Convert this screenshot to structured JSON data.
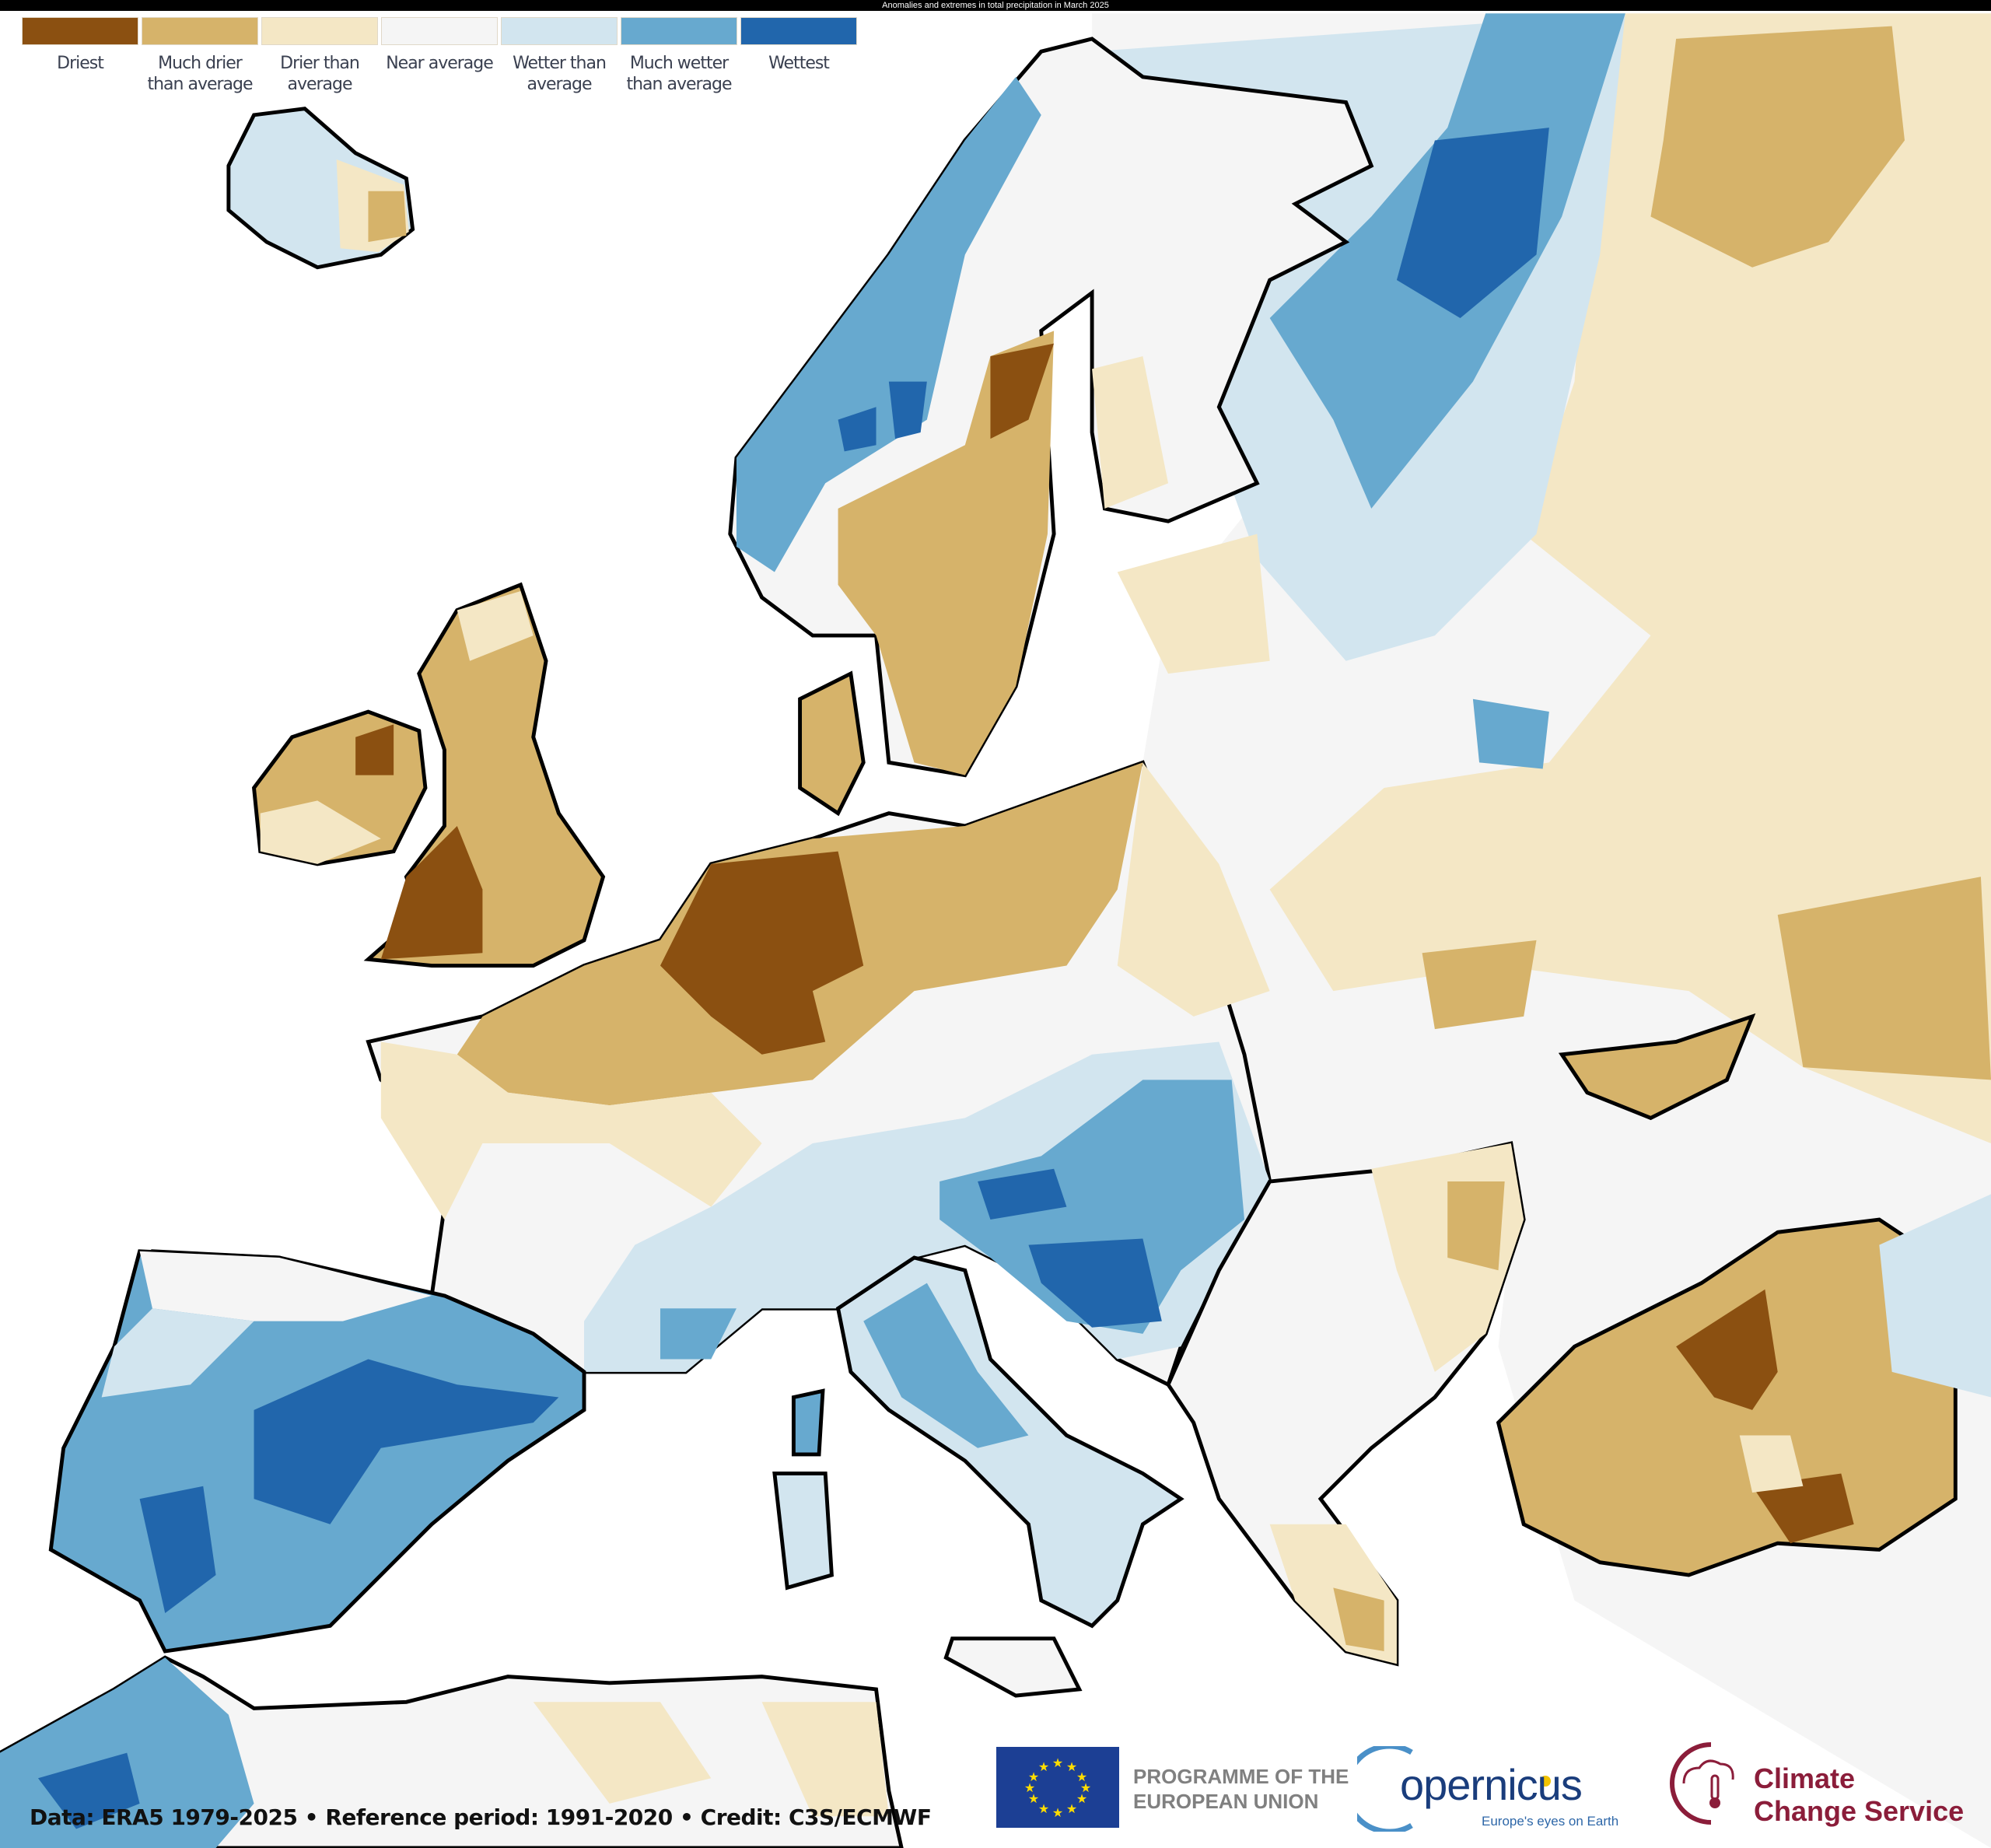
{
  "title": "Anomalies and extremes in total precipitation in March 2025",
  "legend": [
    {
      "label": "Driest",
      "color": "#8b5011"
    },
    {
      "label": "Much drier than average",
      "color": "#d6b36a"
    },
    {
      "label": "Drier than average",
      "color": "#f4e7c5"
    },
    {
      "label": "Near average",
      "color": "#f5f5f5"
    },
    {
      "label": "Wetter than average",
      "color": "#d2e5ef"
    },
    {
      "label": "Much wetter than average",
      "color": "#67a9cf"
    },
    {
      "label": "Wettest",
      "color": "#2166ac"
    }
  ],
  "credit": "Data: ERA5 1979-2025 • Reference period: 1991-2020 • Credit: C3S/ECMWF",
  "logos": {
    "eu_line1": "PROGRAMME OF THE",
    "eu_line2": "EUROPEAN UNION",
    "copernicus": "opernicus",
    "copernicus_tagline": "Europe's eyes on Earth",
    "c3s_line1": "Climate",
    "c3s_line2": "Change Service"
  }
}
